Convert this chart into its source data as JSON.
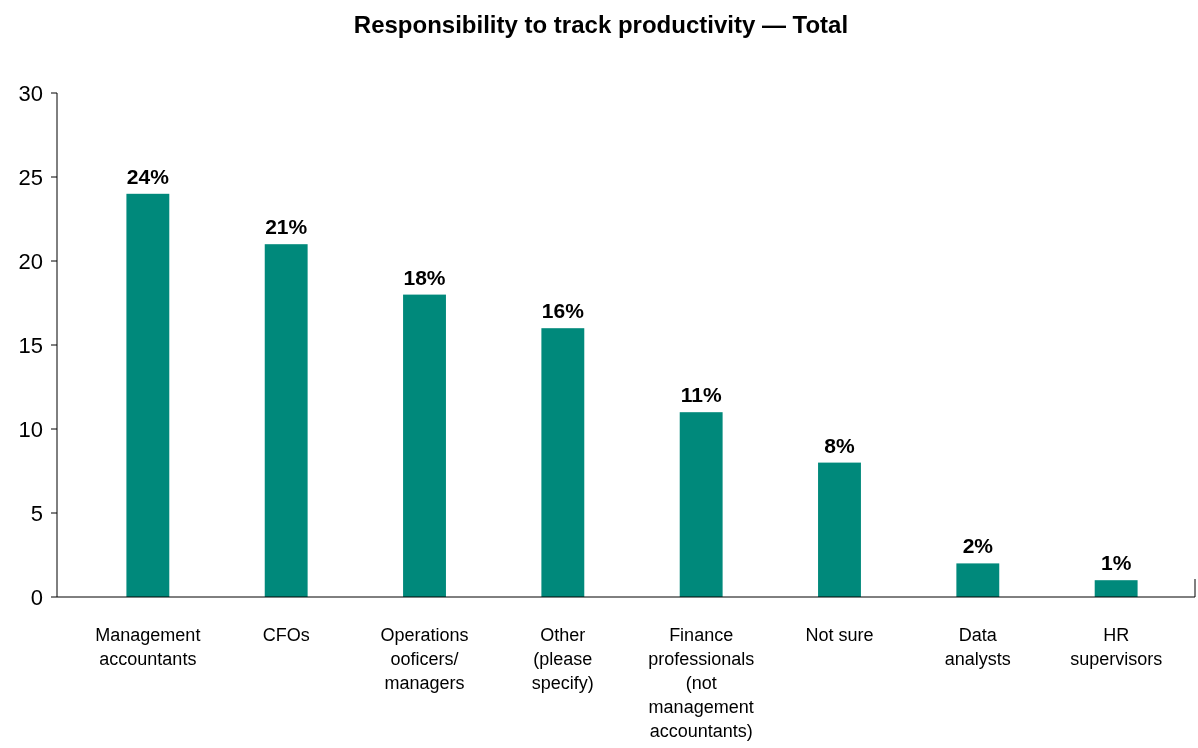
{
  "chart_data": {
    "type": "bar",
    "title": "Responsibility to track productivity — Total",
    "categories": [
      "Management accountants",
      "CFOs",
      "Operations ooficers/ managers",
      "Other (please specify)",
      "Finance professionals (not management accountants)",
      "Not sure",
      "Data analysts",
      "HR supervisors"
    ],
    "values": [
      24,
      21,
      18,
      16,
      11,
      8,
      2,
      1
    ],
    "value_labels": [
      "24%",
      "21%",
      "18%",
      "16%",
      "11%",
      "8%",
      "2%",
      "1%"
    ],
    "color": "#00897b",
    "ylim": [
      0,
      30
    ],
    "yticks": [
      0,
      5,
      10,
      15,
      20,
      25,
      30
    ],
    "grid": false
  }
}
